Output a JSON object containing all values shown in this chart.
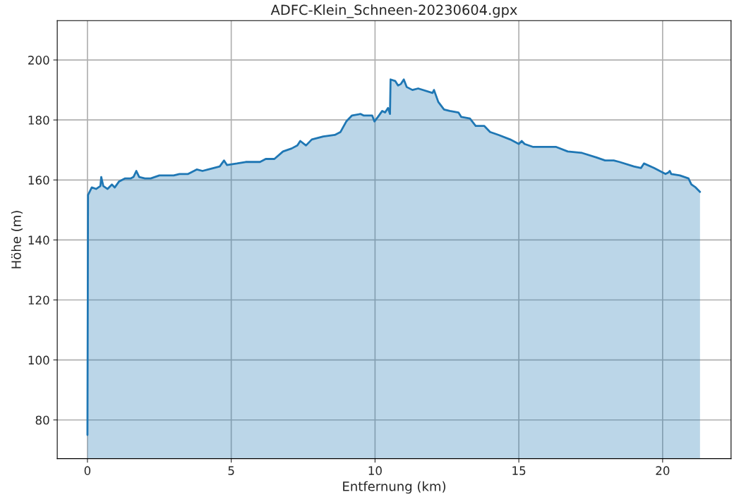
{
  "chart_data": {
    "type": "area",
    "title": "ADFC-Klein_Schneen-20230604.gpx",
    "xlabel": "Entfernung (km)",
    "ylabel": "Höhe (m)",
    "xlim": [
      -1.05,
      22.38
    ],
    "ylim": [
      67.1,
      213.1
    ],
    "xticks": [
      0,
      5,
      10,
      15,
      20
    ],
    "yticks": [
      80,
      100,
      120,
      140,
      160,
      180,
      200
    ],
    "grid": true,
    "series": [
      {
        "color": "#1f77b4",
        "x": [
          0,
          0.02,
          0.15,
          0.3,
          0.45,
          0.48,
          0.55,
          0.7,
          0.85,
          0.95,
          1.1,
          1.3,
          1.5,
          1.6,
          1.7,
          1.8,
          2.0,
          2.2,
          2.5,
          3.0,
          3.2,
          3.5,
          3.8,
          4.0,
          4.2,
          4.6,
          4.75,
          4.85,
          5.2,
          5.5,
          6.0,
          6.2,
          6.5,
          6.8,
          7.1,
          7.3,
          7.4,
          7.6,
          7.8,
          8.2,
          8.6,
          8.8,
          9.0,
          9.2,
          9.5,
          9.6,
          9.9,
          9.98,
          10.1,
          10.25,
          10.35,
          10.45,
          10.52,
          10.54,
          10.7,
          10.8,
          10.9,
          11.0,
          11.1,
          11.3,
          11.5,
          12.0,
          12.05,
          12.2,
          12.4,
          12.6,
          12.9,
          13.0,
          13.3,
          13.5,
          13.8,
          14.0,
          14.3,
          14.7,
          15.0,
          15.1,
          15.2,
          15.5,
          16.3,
          16.7,
          17.2,
          17.7,
          18.0,
          18.3,
          18.5,
          19.0,
          19.25,
          19.35,
          19.7,
          19.9,
          20.1,
          20.2,
          20.25,
          20.3,
          20.6,
          20.9,
          21.0,
          21.15,
          21.3
        ],
        "values": [
          75,
          155,
          157.5,
          157,
          158,
          161,
          158,
          157,
          158.5,
          157.5,
          159.5,
          160.5,
          160.5,
          161,
          163,
          161,
          160.5,
          160.5,
          161.5,
          161.5,
          162,
          162,
          163.5,
          163,
          163.5,
          164.5,
          166.5,
          165,
          165.5,
          166,
          166,
          167,
          167,
          169.5,
          170.5,
          171.5,
          173,
          171.5,
          173.5,
          174.5,
          175,
          176,
          179.5,
          181.5,
          182,
          181.5,
          181.5,
          179.5,
          181,
          183,
          182.5,
          184,
          182,
          193.5,
          193,
          191.5,
          192,
          193.5,
          191,
          190,
          190.5,
          189,
          190,
          186,
          183.5,
          183,
          182.5,
          181,
          180.5,
          178,
          178,
          176,
          175,
          173.5,
          172,
          173,
          172,
          171,
          171,
          169.5,
          169,
          167.5,
          166.5,
          166.5,
          166,
          164.5,
          164,
          165.5,
          164,
          163,
          162,
          162.5,
          163,
          162,
          161.5,
          160.5,
          158.5,
          157.5,
          156
        ]
      }
    ]
  }
}
